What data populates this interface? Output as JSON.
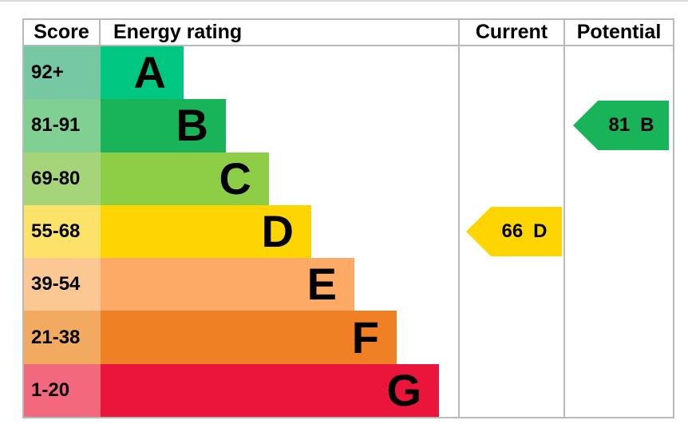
{
  "chart_data": {
    "type": "epc-energy-rating-chart",
    "title": "Energy rating",
    "headers": {
      "score": "Score",
      "energy": "Energy rating",
      "current": "Current",
      "potential": "Potential"
    },
    "bands": [
      {
        "band": "A",
        "score_range": "92+",
        "bar_color": "#00c781",
        "score_color": "#76c8a3"
      },
      {
        "band": "B",
        "score_range": "81-91",
        "bar_color": "#19b459",
        "score_color": "#7fd092"
      },
      {
        "band": "C",
        "score_range": "69-80",
        "bar_color": "#8dce46",
        "score_color": "#a5d578"
      },
      {
        "band": "D",
        "score_range": "55-68",
        "bar_color": "#ffd500",
        "score_color": "#fde269"
      },
      {
        "band": "E",
        "score_range": "39-54",
        "bar_color": "#fcaa65",
        "score_color": "#fbc893"
      },
      {
        "band": "F",
        "score_range": "21-38",
        "bar_color": "#ef8023",
        "score_color": "#f2a960"
      },
      {
        "band": "G",
        "score_range": "1-20",
        "bar_color": "#e9153b",
        "score_color": "#f2697e"
      }
    ],
    "current": {
      "value": "66",
      "band": "D",
      "color": "#ffd500"
    },
    "potential": {
      "value": "81",
      "band": "B",
      "color": "#19b459"
    }
  }
}
